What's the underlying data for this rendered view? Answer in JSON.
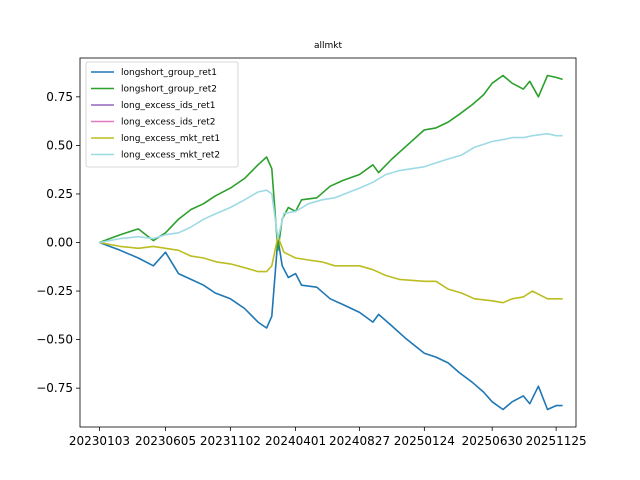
{
  "chart_data": {
    "type": "line",
    "title": "allmkt",
    "xlabel": "",
    "ylabel": "",
    "x_ticks": [
      "20230103",
      "20230605",
      "20231102",
      "20240401",
      "20240827",
      "20250124",
      "20250630",
      "20251125"
    ],
    "y_ticks": [
      "−0.75",
      "−0.50",
      "−0.25",
      "0.00",
      "0.25",
      "0.50",
      "0.75"
    ],
    "y_tick_values": [
      -0.75,
      -0.5,
      -0.25,
      0.0,
      0.25,
      0.5,
      0.75
    ],
    "ylim": [
      -0.95,
      0.95
    ],
    "xlim": [
      "2022-11-19",
      "2026-01-10"
    ],
    "grid": false,
    "legend_position": "top-left",
    "series": [
      {
        "name": "longshort_group_ret1",
        "color": "#1f77b4",
        "points": [
          [
            "2023-01-03",
            0.0
          ],
          [
            "2023-02-20",
            -0.04
          ],
          [
            "2023-04-03",
            -0.08
          ],
          [
            "2023-05-08",
            -0.12
          ],
          [
            "2023-06-05",
            -0.05
          ],
          [
            "2023-07-05",
            -0.16
          ],
          [
            "2023-08-03",
            -0.19
          ],
          [
            "2023-09-01",
            -0.22
          ],
          [
            "2023-09-28",
            -0.26
          ],
          [
            "2023-11-02",
            -0.29
          ],
          [
            "2023-12-05",
            -0.34
          ],
          [
            "2024-01-05",
            -0.41
          ],
          [
            "2024-01-25",
            -0.44
          ],
          [
            "2024-02-06",
            -0.38
          ],
          [
            "2024-02-20",
            0.02
          ],
          [
            "2024-03-01",
            -0.12
          ],
          [
            "2024-03-15",
            -0.18
          ],
          [
            "2024-04-01",
            -0.16
          ],
          [
            "2024-04-15",
            -0.22
          ],
          [
            "2024-05-20",
            -0.23
          ],
          [
            "2024-06-20",
            -0.29
          ],
          [
            "2024-07-20",
            -0.32
          ],
          [
            "2024-08-27",
            -0.36
          ],
          [
            "2024-09-27",
            -0.41
          ],
          [
            "2024-10-10",
            -0.37
          ],
          [
            "2024-11-10",
            -0.43
          ],
          [
            "2024-12-10",
            -0.49
          ],
          [
            "2025-01-24",
            -0.57
          ],
          [
            "2025-02-20",
            -0.59
          ],
          [
            "2025-03-20",
            -0.62
          ],
          [
            "2025-04-15",
            -0.67
          ],
          [
            "2025-05-15",
            -0.72
          ],
          [
            "2025-06-10",
            -0.77
          ],
          [
            "2025-06-30",
            -0.82
          ],
          [
            "2025-07-25",
            -0.86
          ],
          [
            "2025-08-15",
            -0.82
          ],
          [
            "2025-09-10",
            -0.79
          ],
          [
            "2025-09-25",
            -0.83
          ],
          [
            "2025-10-15",
            -0.74
          ],
          [
            "2025-11-05",
            -0.86
          ],
          [
            "2025-11-25",
            -0.84
          ],
          [
            "2025-12-10",
            -0.84
          ]
        ]
      },
      {
        "name": "longshort_group_ret2",
        "color": "#2ca02c",
        "points": [
          [
            "2023-01-03",
            0.0
          ],
          [
            "2023-02-20",
            0.04
          ],
          [
            "2023-04-03",
            0.07
          ],
          [
            "2023-05-08",
            0.01
          ],
          [
            "2023-06-05",
            0.05
          ],
          [
            "2023-07-05",
            0.12
          ],
          [
            "2023-08-03",
            0.17
          ],
          [
            "2023-09-01",
            0.2
          ],
          [
            "2023-09-28",
            0.24
          ],
          [
            "2023-11-02",
            0.28
          ],
          [
            "2023-12-05",
            0.33
          ],
          [
            "2024-01-05",
            0.4
          ],
          [
            "2024-01-25",
            0.44
          ],
          [
            "2024-02-06",
            0.38
          ],
          [
            "2024-02-20",
            -0.04
          ],
          [
            "2024-03-01",
            0.12
          ],
          [
            "2024-03-15",
            0.18
          ],
          [
            "2024-04-01",
            0.16
          ],
          [
            "2024-04-15",
            0.22
          ],
          [
            "2024-05-20",
            0.23
          ],
          [
            "2024-06-20",
            0.29
          ],
          [
            "2024-07-20",
            0.32
          ],
          [
            "2024-08-27",
            0.35
          ],
          [
            "2024-09-27",
            0.4
          ],
          [
            "2024-10-10",
            0.36
          ],
          [
            "2024-11-10",
            0.43
          ],
          [
            "2024-12-10",
            0.49
          ],
          [
            "2025-01-24",
            0.58
          ],
          [
            "2025-02-20",
            0.59
          ],
          [
            "2025-03-20",
            0.62
          ],
          [
            "2025-04-15",
            0.66
          ],
          [
            "2025-05-15",
            0.71
          ],
          [
            "2025-06-10",
            0.76
          ],
          [
            "2025-06-30",
            0.82
          ],
          [
            "2025-07-25",
            0.86
          ],
          [
            "2025-08-15",
            0.82
          ],
          [
            "2025-09-10",
            0.79
          ],
          [
            "2025-09-25",
            0.83
          ],
          [
            "2025-10-15",
            0.75
          ],
          [
            "2025-11-05",
            0.86
          ],
          [
            "2025-11-25",
            0.85
          ],
          [
            "2025-12-10",
            0.84
          ]
        ]
      },
      {
        "name": "long_excess_ids_ret1",
        "color": "#9467bd",
        "points": []
      },
      {
        "name": "long_excess_ids_ret2",
        "color": "#e377c2",
        "points": []
      },
      {
        "name": "long_excess_mkt_ret1",
        "color": "#bcbd22",
        "points": [
          [
            "2023-01-03",
            0.0
          ],
          [
            "2023-02-20",
            -0.02
          ],
          [
            "2023-04-03",
            -0.03
          ],
          [
            "2023-05-08",
            -0.02
          ],
          [
            "2023-06-05",
            -0.03
          ],
          [
            "2023-07-05",
            -0.04
          ],
          [
            "2023-08-03",
            -0.07
          ],
          [
            "2023-09-01",
            -0.08
          ],
          [
            "2023-10-01",
            -0.1
          ],
          [
            "2023-11-02",
            -0.11
          ],
          [
            "2023-12-05",
            -0.13
          ],
          [
            "2024-01-05",
            -0.15
          ],
          [
            "2024-01-25",
            -0.15
          ],
          [
            "2024-02-06",
            -0.12
          ],
          [
            "2024-02-20",
            0.03
          ],
          [
            "2024-03-05",
            -0.05
          ],
          [
            "2024-04-01",
            -0.08
          ],
          [
            "2024-05-01",
            -0.09
          ],
          [
            "2024-06-01",
            -0.1
          ],
          [
            "2024-07-01",
            -0.12
          ],
          [
            "2024-08-27",
            -0.12
          ],
          [
            "2024-09-27",
            -0.14
          ],
          [
            "2024-10-27",
            -0.17
          ],
          [
            "2024-11-27",
            -0.19
          ],
          [
            "2025-01-24",
            -0.2
          ],
          [
            "2025-02-20",
            -0.2
          ],
          [
            "2025-03-20",
            -0.24
          ],
          [
            "2025-04-20",
            -0.26
          ],
          [
            "2025-05-20",
            -0.29
          ],
          [
            "2025-06-30",
            -0.3
          ],
          [
            "2025-07-25",
            -0.31
          ],
          [
            "2025-08-15",
            -0.29
          ],
          [
            "2025-09-10",
            -0.28
          ],
          [
            "2025-10-01",
            -0.25
          ],
          [
            "2025-11-05",
            -0.29
          ],
          [
            "2025-11-25",
            -0.29
          ],
          [
            "2025-12-10",
            -0.29
          ]
        ]
      },
      {
        "name": "long_excess_mkt_ret2",
        "color": "#9edae5",
        "points": [
          [
            "2023-01-03",
            0.0
          ],
          [
            "2023-02-20",
            0.02
          ],
          [
            "2023-04-03",
            0.03
          ],
          [
            "2023-05-08",
            0.02
          ],
          [
            "2023-06-05",
            0.04
          ],
          [
            "2023-07-05",
            0.05
          ],
          [
            "2023-08-03",
            0.08
          ],
          [
            "2023-09-01",
            0.12
          ],
          [
            "2023-10-01",
            0.15
          ],
          [
            "2023-11-02",
            0.18
          ],
          [
            "2023-12-05",
            0.22
          ],
          [
            "2024-01-05",
            0.26
          ],
          [
            "2024-01-25",
            0.27
          ],
          [
            "2024-02-06",
            0.25
          ],
          [
            "2024-02-20",
            0.02
          ],
          [
            "2024-03-05",
            0.15
          ],
          [
            "2024-04-01",
            0.16
          ],
          [
            "2024-05-01",
            0.2
          ],
          [
            "2024-06-01",
            0.22
          ],
          [
            "2024-07-01",
            0.23
          ],
          [
            "2024-08-27",
            0.28
          ],
          [
            "2024-09-27",
            0.31
          ],
          [
            "2024-10-27",
            0.35
          ],
          [
            "2024-11-27",
            0.37
          ],
          [
            "2025-01-24",
            0.39
          ],
          [
            "2025-02-20",
            0.41
          ],
          [
            "2025-03-20",
            0.43
          ],
          [
            "2025-04-20",
            0.45
          ],
          [
            "2025-05-20",
            0.49
          ],
          [
            "2025-06-30",
            0.52
          ],
          [
            "2025-07-25",
            0.53
          ],
          [
            "2025-08-15",
            0.54
          ],
          [
            "2025-09-10",
            0.54
          ],
          [
            "2025-10-01",
            0.55
          ],
          [
            "2025-11-05",
            0.56
          ],
          [
            "2025-11-25",
            0.55
          ],
          [
            "2025-12-10",
            0.55
          ]
        ]
      }
    ]
  }
}
